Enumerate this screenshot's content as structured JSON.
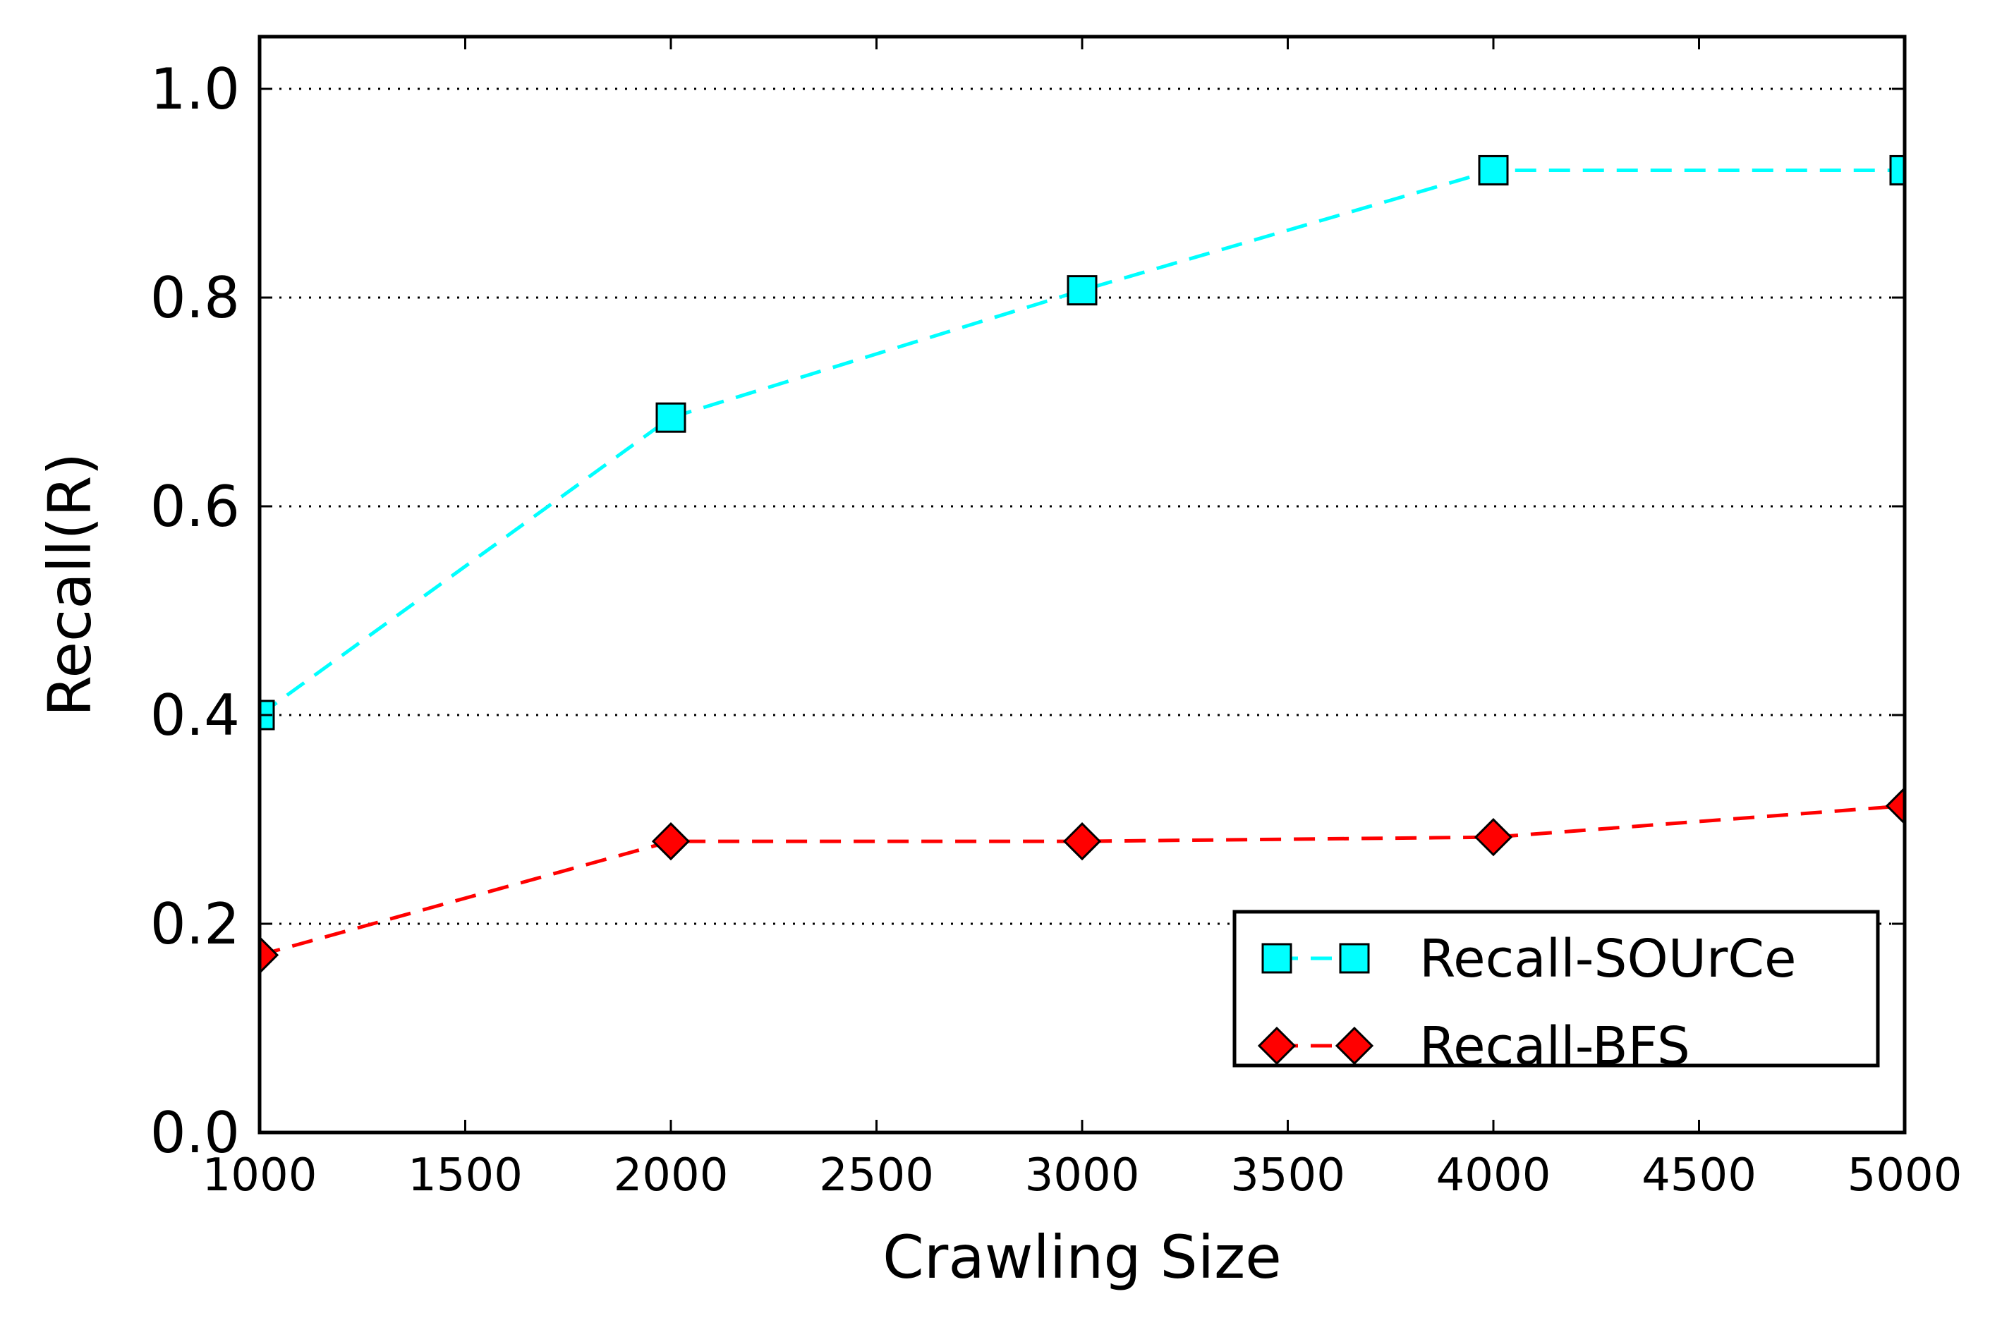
{
  "chart_data": {
    "type": "line",
    "title": "",
    "xlabel": "Crawling Size",
    "ylabel": "Recall(R)",
    "x": [
      1000,
      2000,
      3000,
      4000,
      5000
    ],
    "xlim": [
      1000,
      5000
    ],
    "ylim": [
      0.0,
      1.05
    ],
    "x_ticks": [
      "1000",
      "1500",
      "2000",
      "2500",
      "3000",
      "3500",
      "4000",
      "4500",
      "5000"
    ],
    "y_ticks": [
      "0.0",
      "0.2",
      "0.4",
      "0.6",
      "0.8",
      "1.0"
    ],
    "grid": "horizontal dotted",
    "legend_position": "lower-right",
    "series": [
      {
        "name": "Recall-SOUrCe",
        "values": [
          0.4,
          0.685,
          0.807,
          0.922,
          0.922
        ],
        "color": "#00ffff",
        "marker": "square",
        "linestyle": "dashed"
      },
      {
        "name": "Recall-BFS",
        "values": [
          0.17,
          0.279,
          0.279,
          0.283,
          0.313
        ],
        "color": "#ff0000",
        "marker": "diamond",
        "linestyle": "dashed"
      }
    ]
  }
}
